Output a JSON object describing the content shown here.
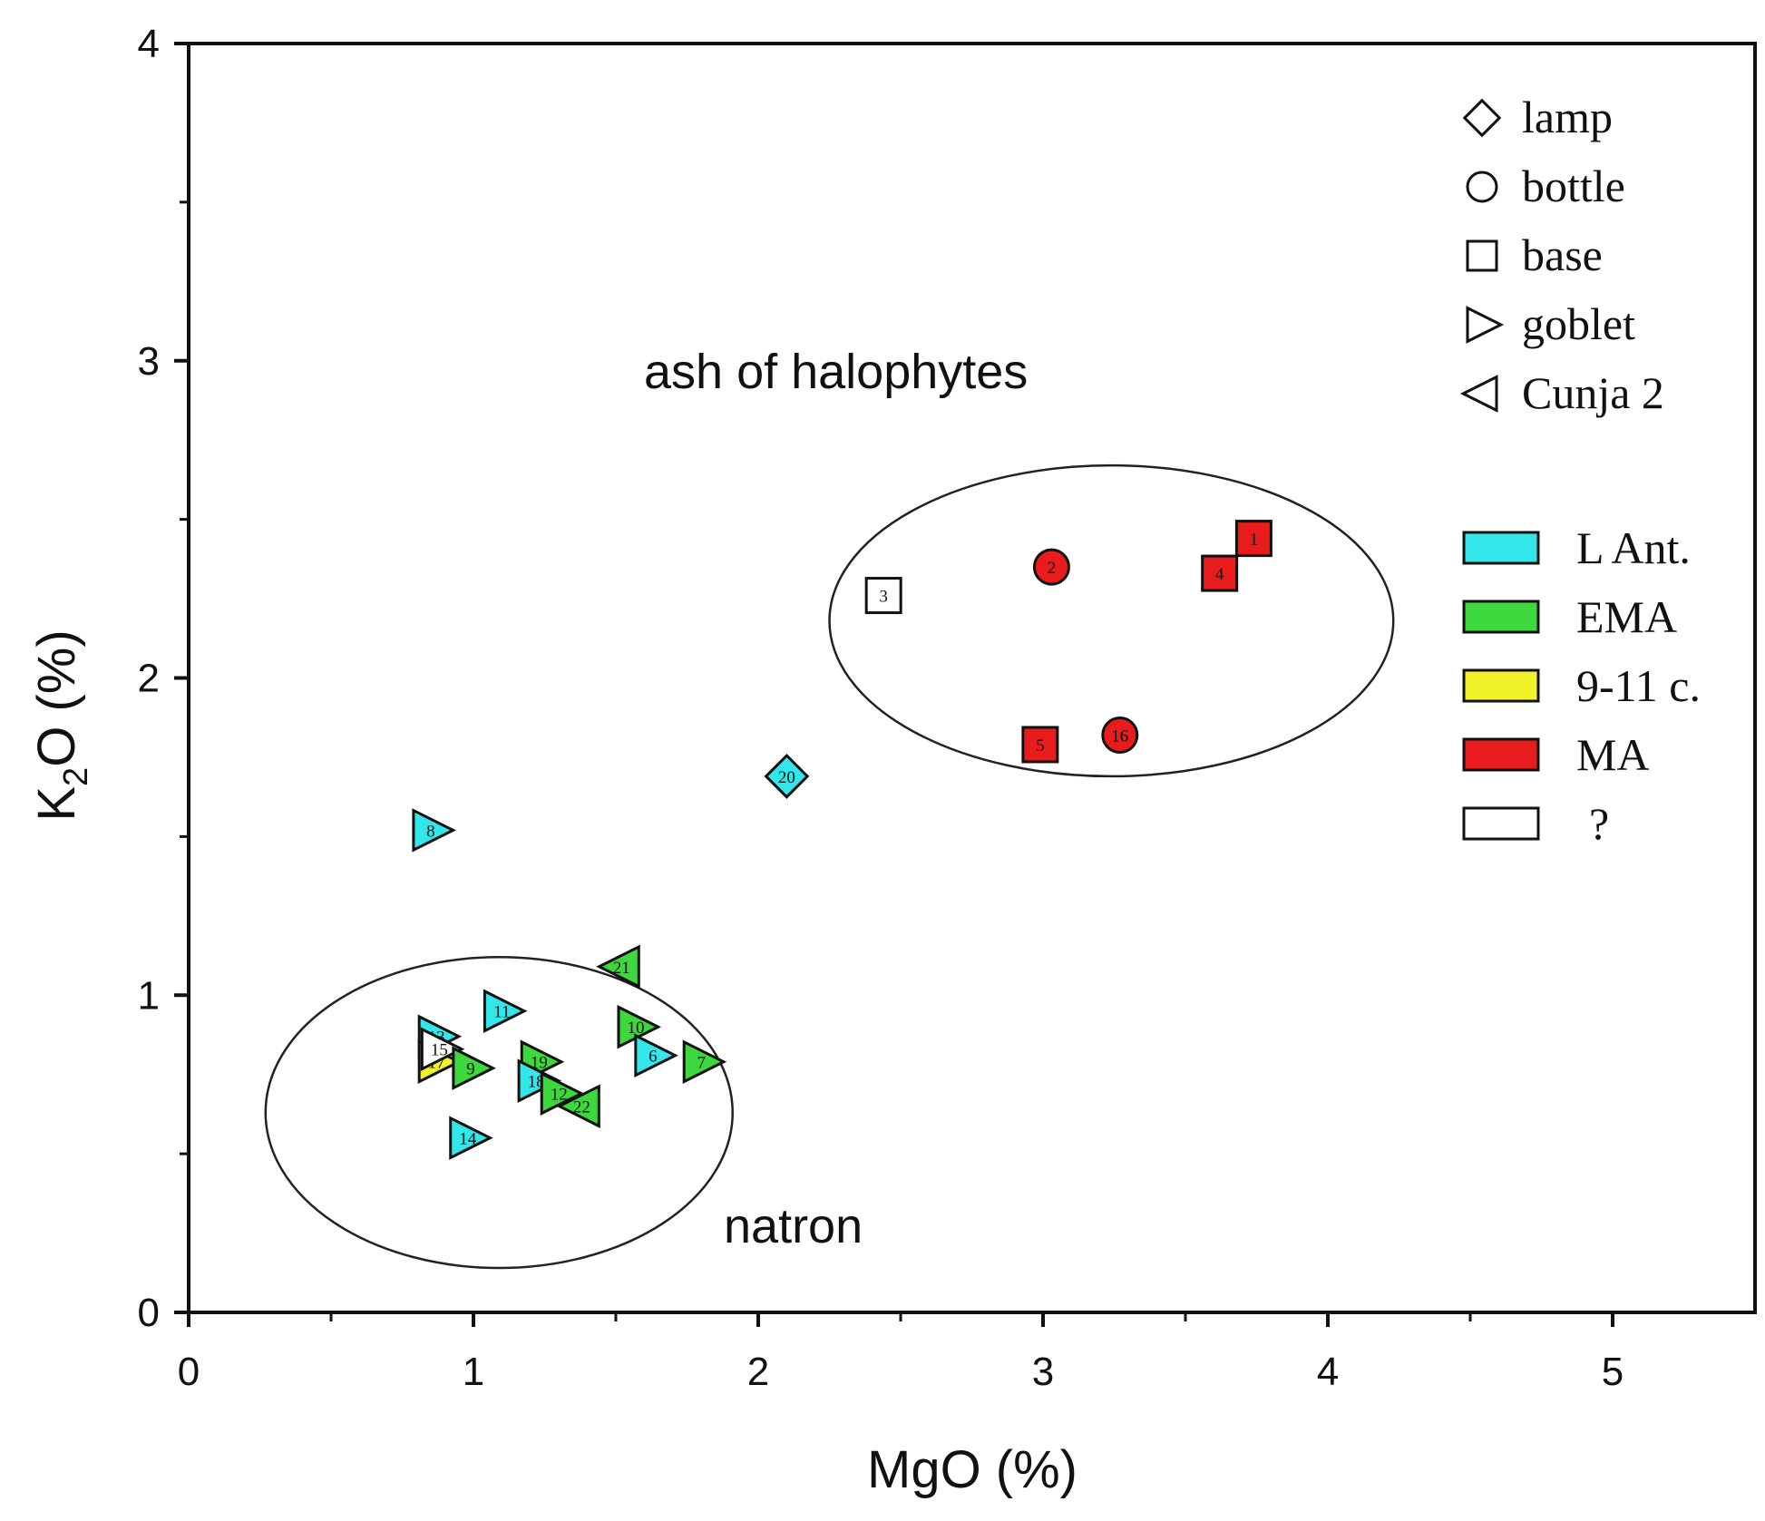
{
  "chart_data": {
    "type": "scatter",
    "xlabel": "MgO (%)",
    "ylabel_main": "K",
    "ylabel_sub": "2",
    "ylabel_rest": "O (%)",
    "xlim": [
      0,
      5.5
    ],
    "ylim": [
      0,
      4
    ],
    "x_ticks": [
      {
        "value": 0,
        "label": "0"
      },
      {
        "value": 1,
        "label": "1"
      },
      {
        "value": 2,
        "label": "2"
      },
      {
        "value": 3,
        "label": "3"
      },
      {
        "value": 4,
        "label": "4"
      },
      {
        "value": 5,
        "label": "5"
      }
    ],
    "x_minor_ticks": [
      0.5,
      1.5,
      2.5,
      3.5,
      4.5
    ],
    "y_ticks": [
      {
        "value": 0,
        "label": "0"
      },
      {
        "value": 1,
        "label": "1"
      },
      {
        "value": 2,
        "label": "2"
      },
      {
        "value": 3,
        "label": "3"
      },
      {
        "value": 4,
        "label": "4"
      }
    ],
    "y_minor_ticks": [
      0.5,
      1.5,
      2.5,
      3.5
    ],
    "annotations": [
      {
        "text": "ash of halophytes",
        "x": 2.4,
        "y": 2.97
      },
      {
        "text": "natron",
        "x": 1.89,
        "y": 0.24
      }
    ],
    "regions": [
      {
        "name": "halophytes-ellipse",
        "cx": 3.24,
        "cy": 2.18,
        "rx": 0.99,
        "ry": 0.49
      },
      {
        "name": "natron-ellipse",
        "cx": 1.09,
        "cy": 0.63,
        "rx": 0.82,
        "ry": 0.49
      }
    ],
    "colors": {
      "L Ant.": "#33e6ea",
      "EMA": "#3cd83c",
      "9-11 c.": "#f2f22a",
      "MA": "#e81c1c",
      "?": "#ffffff"
    },
    "legend_shapes": [
      {
        "shape": "diamond",
        "label": "lamp"
      },
      {
        "shape": "circle",
        "label": "bottle"
      },
      {
        "shape": "square",
        "label": "base"
      },
      {
        "shape": "triangle-right",
        "label": "goblet"
      },
      {
        "shape": "triangle-left",
        "label": "Cunja 2"
      }
    ],
    "legend_colors": [
      {
        "group": "L Ant.",
        "label": "L Ant."
      },
      {
        "group": "EMA",
        "label": "EMA"
      },
      {
        "group": "9-11 c.",
        "label": "9-11 c."
      },
      {
        "group": "MA",
        "label": "MA"
      },
      {
        "group": "?",
        "label": "?"
      }
    ],
    "points": [
      {
        "label": "1",
        "shape": "square",
        "group": "MA",
        "x": 3.74,
        "y": 2.44
      },
      {
        "label": "4",
        "shape": "square",
        "group": "MA",
        "x": 3.62,
        "y": 2.33
      },
      {
        "label": "2",
        "shape": "circle",
        "group": "MA",
        "x": 3.03,
        "y": 2.35
      },
      {
        "label": "3",
        "shape": "square",
        "group": "?",
        "x": 2.44,
        "y": 2.26
      },
      {
        "label": "5",
        "shape": "square",
        "group": "MA",
        "x": 2.99,
        "y": 1.79
      },
      {
        "label": "16",
        "shape": "circle",
        "group": "MA",
        "x": 3.27,
        "y": 1.82
      },
      {
        "label": "20",
        "shape": "diamond",
        "group": "L Ant.",
        "x": 2.1,
        "y": 1.69
      },
      {
        "label": "8",
        "shape": "triangle-right",
        "group": "L Ant.",
        "x": 0.85,
        "y": 1.52
      },
      {
        "label": "21",
        "shape": "triangle-left",
        "group": "EMA",
        "x": 1.52,
        "y": 1.09
      },
      {
        "label": "11",
        "shape": "triangle-right",
        "group": "L Ant.",
        "x": 1.1,
        "y": 0.95
      },
      {
        "label": "10",
        "shape": "triangle-right",
        "group": "EMA",
        "x": 1.57,
        "y": 0.9
      },
      {
        "label": "6",
        "shape": "triangle-right",
        "group": "L Ant.",
        "x": 1.63,
        "y": 0.81
      },
      {
        "label": "7",
        "shape": "triangle-right",
        "group": "EMA",
        "x": 1.8,
        "y": 0.79
      },
      {
        "label": "13",
        "shape": "triangle-right",
        "group": "L Ant.",
        "x": 0.87,
        "y": 0.87
      },
      {
        "label": "17",
        "shape": "triangle-right",
        "group": "9-11 c.",
        "x": 0.87,
        "y": 0.79
      },
      {
        "label": "15",
        "shape": "triangle-right",
        "group": "?",
        "x": 0.88,
        "y": 0.83
      },
      {
        "label": "9",
        "shape": "triangle-right",
        "group": "EMA",
        "x": 0.99,
        "y": 0.77
      },
      {
        "label": "19",
        "shape": "triangle-right",
        "group": "EMA",
        "x": 1.23,
        "y": 0.79
      },
      {
        "label": "18",
        "shape": "triangle-right",
        "group": "L Ant.",
        "x": 1.22,
        "y": 0.73
      },
      {
        "label": "12",
        "shape": "triangle-right",
        "group": "EMA",
        "x": 1.3,
        "y": 0.69
      },
      {
        "label": "22",
        "shape": "triangle-left",
        "group": "EMA",
        "x": 1.38,
        "y": 0.65
      },
      {
        "label": "14",
        "shape": "triangle-right",
        "group": "L Ant.",
        "x": 0.98,
        "y": 0.55
      }
    ]
  }
}
